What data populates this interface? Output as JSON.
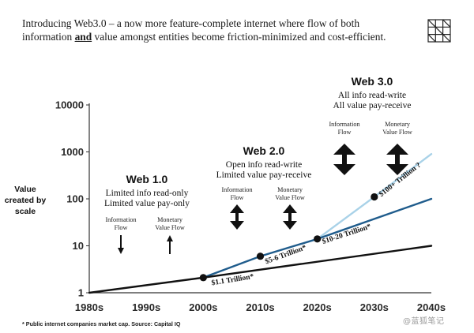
{
  "intro": {
    "part1": "Introducing Web3.0 – a now more feature-complete internet where flow of both information ",
    "emph": "and",
    "part2": " value amongst entities become friction-minimized and cost-efficient."
  },
  "logo_icon": "grid-logo-icon",
  "footnote": "* Public internet companies market cap. Source: Capital IQ",
  "watermark": "@蓝狐笔记",
  "colors": {
    "web1": "#111111",
    "web2": "#1f5c8c",
    "web3": "#a9d2e8",
    "arrow": "#111111"
  },
  "chart_data": {
    "type": "line",
    "scale": "log",
    "x_categories": [
      "1980s",
      "1990s",
      "2000s",
      "2010s",
      "2020s",
      "2030s",
      "2040s"
    ],
    "y_ticks": [
      "1",
      "10",
      "100",
      "1000",
      "10000"
    ],
    "y_ticks_values": [
      1,
      10,
      100,
      1000,
      10000
    ],
    "ylim": [
      1,
      10000
    ],
    "ylabel_lines": [
      "Value",
      "created by",
      "scale"
    ],
    "series": [
      {
        "key": "web1",
        "points": [
          [
            0,
            1
          ],
          [
            2,
            2.1
          ],
          [
            6,
            10
          ]
        ]
      },
      {
        "key": "web2",
        "points": [
          [
            2,
            2.1
          ],
          [
            3,
            6
          ],
          [
            4,
            14
          ],
          [
            6,
            100
          ]
        ]
      },
      {
        "key": "web3",
        "points": [
          [
            4,
            14
          ],
          [
            5,
            110
          ],
          [
            6,
            900
          ]
        ]
      }
    ],
    "markers": [
      [
        2,
        2.1
      ],
      [
        3,
        6
      ],
      [
        4,
        14
      ],
      [
        5,
        110
      ]
    ],
    "annotations": [
      {
        "text": "$1.1 Trillion*",
        "x": 2.15,
        "y": 1.45,
        "angle": -9
      },
      {
        "text": "$5-6 Trillion*",
        "x": 3.1,
        "y": 4.1,
        "angle": -20
      },
      {
        "text": "$10-20 Trillion*",
        "x": 4.1,
        "y": 11,
        "angle": -18
      },
      {
        "text": "$100+ Trillion ?",
        "x": 5.12,
        "y": 110,
        "angle": -38
      }
    ],
    "eras": [
      {
        "title": "Web 1.0",
        "lines": [
          "Limited info read-only",
          "Limited value pay-only"
        ],
        "info_label": [
          "Information",
          "Flow"
        ],
        "value_label": [
          "Monetary",
          "Value Flow"
        ],
        "info_arrow": "arrow-down-icon",
        "value_arrow": "arrow-up-icon"
      },
      {
        "title": "Web 2.0",
        "lines": [
          "Open info read-write",
          "Limited value pay-receive"
        ],
        "info_label": [
          "Information",
          "Flow"
        ],
        "value_label": [
          "Monetary",
          "Value Flow"
        ],
        "info_arrow": "double-arrow-icon",
        "value_arrow": "double-arrow-icon"
      },
      {
        "title": "Web 3.0",
        "lines": [
          "All info read-write",
          "All value pay-receive"
        ],
        "info_label": [
          "Information",
          "Flow"
        ],
        "value_label": [
          "Monetary",
          "Value Flow"
        ],
        "info_arrow": "double-arrow-icon",
        "value_arrow": "double-arrow-icon"
      }
    ]
  }
}
